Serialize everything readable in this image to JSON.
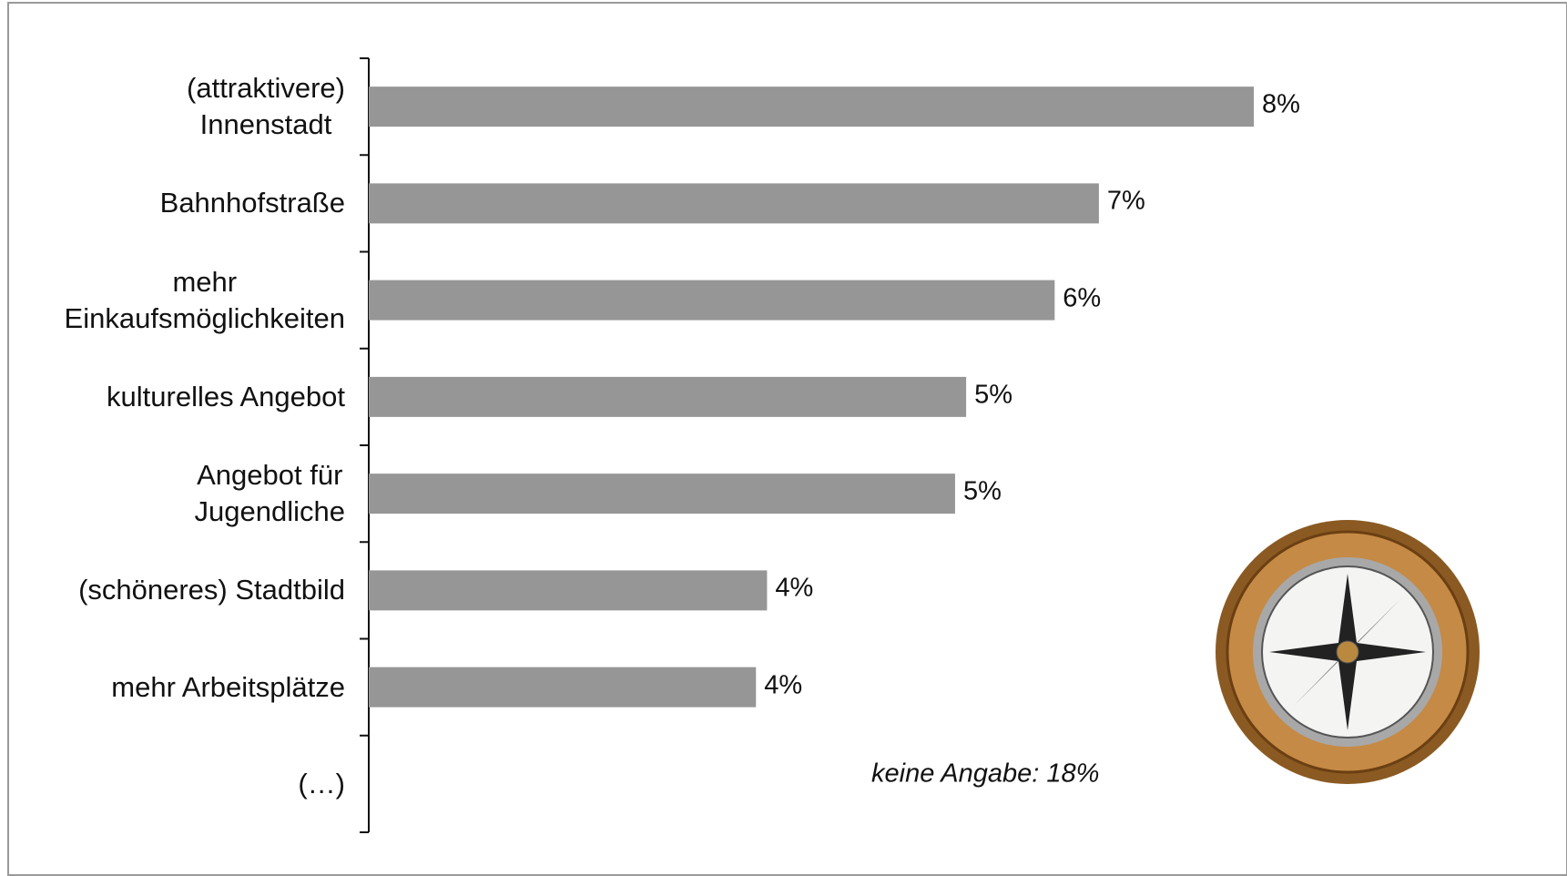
{
  "chart_data": {
    "type": "barh",
    "categories": [
      "(attraktivere)\nInnenstadt",
      "Bahnhofstraße",
      "mehr\nEinkaufsmöglichkeiten",
      "kulturelles Angebot",
      "Angebot für\nJugendliche",
      "(schöneres) Stadtbild",
      "mehr Arbeitsplätze",
      "(…)"
    ],
    "values": [
      8.0,
      6.6,
      6.2,
      5.4,
      5.3,
      3.6,
      3.5,
      null
    ],
    "value_labels": [
      "8%",
      "7%",
      "6%",
      "5%",
      "5%",
      "4%",
      "4%",
      null
    ],
    "color": "#969696",
    "annotation": "keine Angabe: 18%"
  }
}
